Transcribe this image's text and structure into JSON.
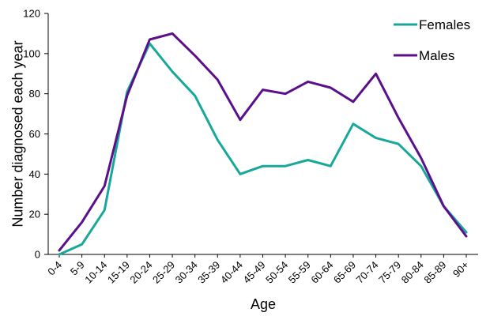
{
  "chart_data": {
    "type": "line",
    "title": "",
    "xlabel": "Age",
    "ylabel": "Number diagnosed each year",
    "ylim": [
      0,
      120
    ],
    "yticks": [
      0,
      20,
      40,
      60,
      80,
      100,
      120
    ],
    "grid": false,
    "legend_position": "top-right",
    "categories": [
      "0-4",
      "5-9",
      "10-14",
      "15-19",
      "20-24",
      "25-29",
      "30-34",
      "35-39",
      "40-44",
      "45-49",
      "50-54",
      "55-59",
      "60-64",
      "65-69",
      "70-74",
      "75-79",
      "80-84",
      "85-89",
      "90+"
    ],
    "series": [
      {
        "name": "Females",
        "color": "#17a89a",
        "values": [
          0,
          5,
          22,
          81,
          105,
          91,
          79,
          57,
          40,
          44,
          44,
          47,
          44,
          65,
          58,
          55,
          44,
          24,
          11
        ]
      },
      {
        "name": "Males",
        "color": "#5c0f8b",
        "values": [
          2,
          16,
          34,
          79,
          107,
          110,
          99,
          87,
          67,
          82,
          80,
          86,
          83,
          76,
          90,
          68,
          48,
          24,
          9
        ]
      }
    ]
  }
}
